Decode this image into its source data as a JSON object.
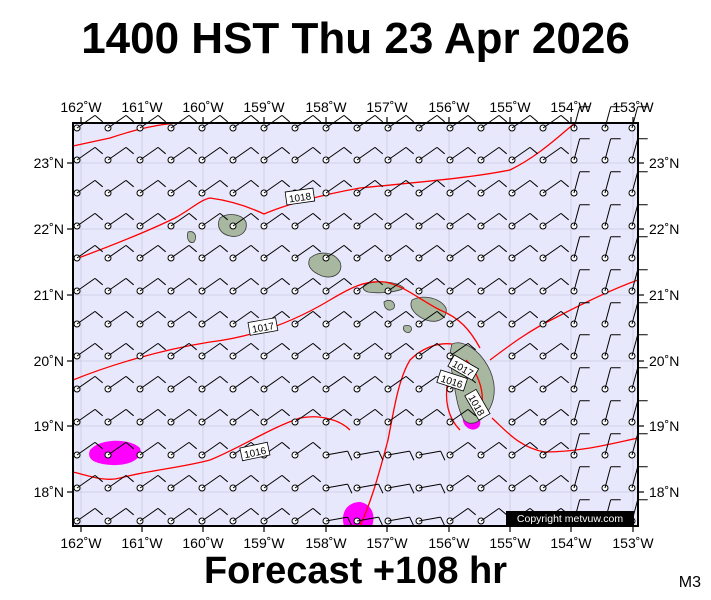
{
  "title": "1400 HST Thu 23 Apr 2026",
  "footer": "Forecast +108 hr",
  "model": "M3",
  "copyright": "Copyright metvuw.com",
  "axes": {
    "lon_labels": [
      "162˚W",
      "161˚W",
      "160˚W",
      "159˚W",
      "158˚W",
      "157˚W",
      "156˚W",
      "155˚W",
      "154˚W",
      "153˚W"
    ],
    "lat_labels": [
      "23˚N",
      "22˚N",
      "21˚N",
      "20˚N",
      "19˚N",
      "18˚N"
    ]
  },
  "isobar_labels": [
    "1018",
    "1017",
    "1016",
    "1017",
    "1016",
    "1018"
  ],
  "colors": {
    "ocean": "#e8e8fc",
    "isobar": "#ff0000",
    "rain": "#ff00ff",
    "land": "#a8b8a0",
    "frame": "#000000"
  }
}
